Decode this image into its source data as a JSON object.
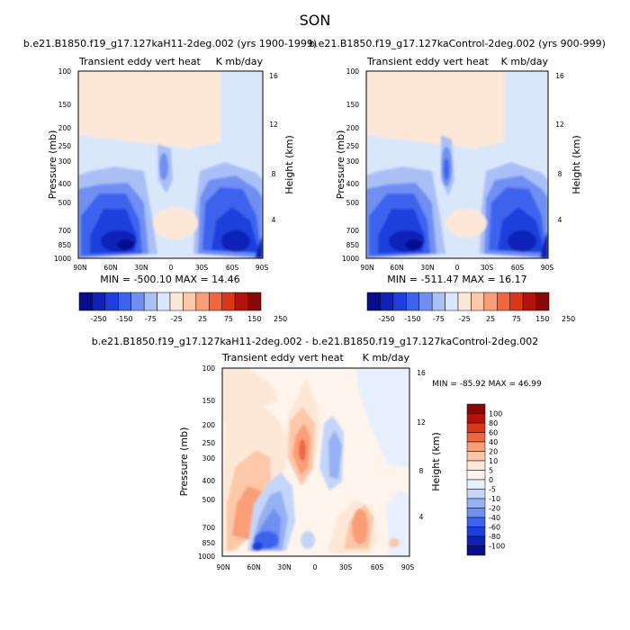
{
  "page_title": "SON",
  "chart_data": [
    {
      "type": "heatmap",
      "title": "b.e21.B1850.f19_g17.127kaH11-2deg.002 (yrs 1900-1999)",
      "left_string": "Transient eddy vert heat",
      "right_string": "K mb/day",
      "xlabel": "",
      "ylabel": "Pressure (mb)",
      "y2label": "Height (km)",
      "x_ticks": [
        "90N",
        "60N",
        "30N",
        "0",
        "30S",
        "60S",
        "90S"
      ],
      "x_range": [
        90,
        -90
      ],
      "y_ticks": [
        100,
        150,
        200,
        250,
        300,
        400,
        500,
        700,
        850,
        1000
      ],
      "y_range": [
        100,
        1000
      ],
      "y2_ticks": [
        4,
        8,
        12,
        16
      ],
      "stats": "MIN = -500.10  MAX =  14.46",
      "min": -500.1,
      "max": 14.46
    },
    {
      "type": "heatmap",
      "title": "b.e21.B1850.f19_g17.127kaControl-2deg.002 (yrs 900-999)",
      "left_string": "Transient eddy vert heat",
      "right_string": "K mb/day",
      "xlabel": "",
      "ylabel": "Pressure (mb)",
      "y2label": "Height (km)",
      "x_ticks": [
        "90N",
        "60N",
        "30N",
        "0",
        "30S",
        "60S",
        "90S"
      ],
      "x_range": [
        90,
        -90
      ],
      "y_ticks": [
        100,
        150,
        200,
        250,
        300,
        400,
        500,
        700,
        850,
        1000
      ],
      "y_range": [
        100,
        1000
      ],
      "y2_ticks": [
        4,
        8,
        12,
        16
      ],
      "stats": "MIN = -511.47  MAX =  16.17",
      "min": -511.47,
      "max": 16.17
    },
    {
      "type": "heatmap",
      "title": "b.e21.B1850.f19_g17.127kaH11-2deg.002 - b.e21.B1850.f19_g17.127kaControl-2deg.002",
      "left_string": "Transient eddy vert heat",
      "right_string": "K mb/day",
      "xlabel": "",
      "ylabel": "Pressure (mb)",
      "y2label": "Height (km)",
      "x_ticks": [
        "90N",
        "60N",
        "30N",
        "0",
        "30S",
        "60S",
        "90S"
      ],
      "x_range": [
        90,
        -90
      ],
      "y_ticks": [
        100,
        150,
        200,
        250,
        300,
        400,
        500,
        700,
        850,
        1000
      ],
      "y_range": [
        100,
        1000
      ],
      "y2_ticks": [
        4,
        8,
        12,
        16
      ],
      "stats": "MIN = -85.92  MAX =  46.99",
      "min": -85.92,
      "max": 46.99
    }
  ],
  "colorbar_abs": {
    "labels": [
      "-250",
      "-150",
      "-75",
      "-25",
      "25",
      "75",
      "150",
      "250"
    ],
    "colors": [
      "#060e8c",
      "#0c22b8",
      "#1f3fdc",
      "#3d63ee",
      "#6f8ff2",
      "#a9c0f7",
      "#d9e7fb",
      "#fde8d8",
      "#fcc8a8",
      "#fa9e77",
      "#f0673f",
      "#dc3618",
      "#b41408",
      "#8a0805"
    ]
  },
  "colorbar_diff": {
    "labels": [
      "100",
      "80",
      "60",
      "40",
      "20",
      "10",
      "5",
      "0",
      "-5",
      "-10",
      "-20",
      "-40",
      "-60",
      "-80",
      "-100"
    ],
    "colors": [
      "#8a0805",
      "#b41408",
      "#dc3618",
      "#f0673f",
      "#fa9e77",
      "#fcc8a8",
      "#fde8d8",
      "#fef4ec",
      "#e6f0fc",
      "#c3d6f8",
      "#95b0f3",
      "#6f8ff2",
      "#3d63ee",
      "#1f3fdc",
      "#0c22b8",
      "#060e8c"
    ]
  }
}
